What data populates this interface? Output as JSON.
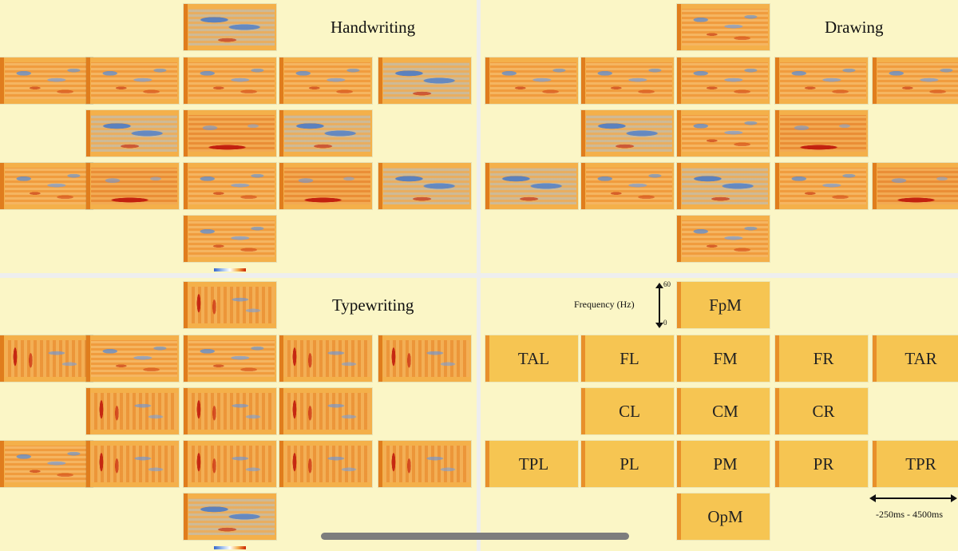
{
  "panels": {
    "handwriting": {
      "title": "Handwriting"
    },
    "drawing": {
      "title": "Drawing",
      "watermark": "Drawing"
    },
    "typewriting": {
      "title": "Typewriting"
    },
    "legend": {
      "frequency_label": "Frequency (Hz)",
      "freq_max": "60",
      "freq_min": "0",
      "time_range": "-250ms - 4500ms"
    }
  },
  "regions": {
    "fpm": "FpM",
    "tal": "TAL",
    "fl": "FL",
    "fm": "FM",
    "fr": "FR",
    "tar": "TAR",
    "cl": "CL",
    "cm": "CM",
    "cr": "CR",
    "tpl": "TPL",
    "pl": "PL",
    "pm": "PM",
    "pr": "PR",
    "tpr": "TPR",
    "opm": "OpM"
  },
  "colors": {
    "background": "#fbf6c6",
    "tile": "#f6c552",
    "tile_strip": "#e8902a",
    "spectrogram_warm": "#f3a845",
    "spectrogram_cool": "#5a8cd2",
    "spectrogram_hot": "#be140a"
  }
}
